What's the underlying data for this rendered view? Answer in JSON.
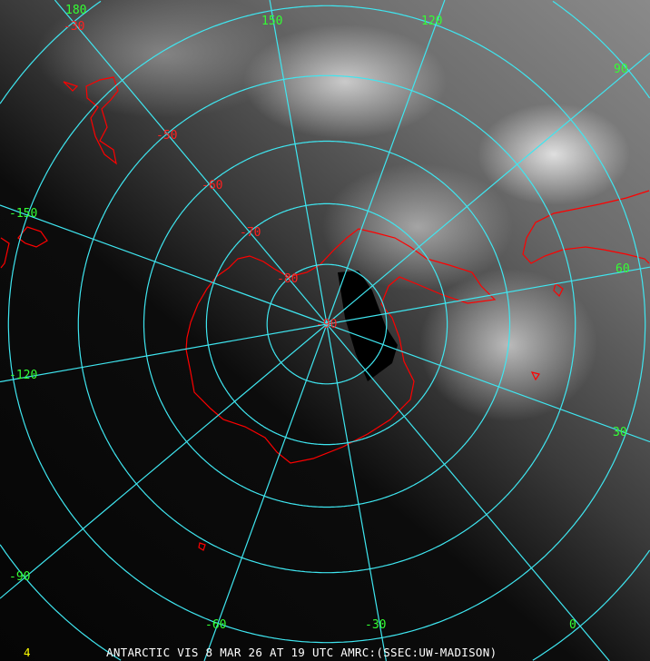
{
  "caption": "ANTARCTIC VIS 8 MAR 26 AT 19 UTC AMRC:(SSEC:UW-MADISON)",
  "frame_number": "4",
  "colors": {
    "grid": "#3fe6f0",
    "longitude_labels": "#33ff33",
    "latitude_labels": "#ff2020",
    "coastline": "#ff0000",
    "caption": "#ffffff",
    "frame_number": "#ffff00"
  },
  "projection": "south polar stereographic",
  "longitude_labels": [
    "180",
    "150",
    "120",
    "90",
    "60",
    "30",
    "0",
    "-30",
    "-60",
    "-90",
    "-120",
    "-150"
  ],
  "longitudes": [
    180,
    150,
    120,
    90,
    60,
    30,
    0,
    -30,
    -60,
    -90,
    -120,
    -150
  ],
  "latitude_labels": [
    "-30",
    "-50",
    "-60",
    "-70",
    "-80",
    "-90"
  ],
  "latitudes": [
    -80,
    -70,
    -60,
    -50,
    -40,
    -30
  ]
}
